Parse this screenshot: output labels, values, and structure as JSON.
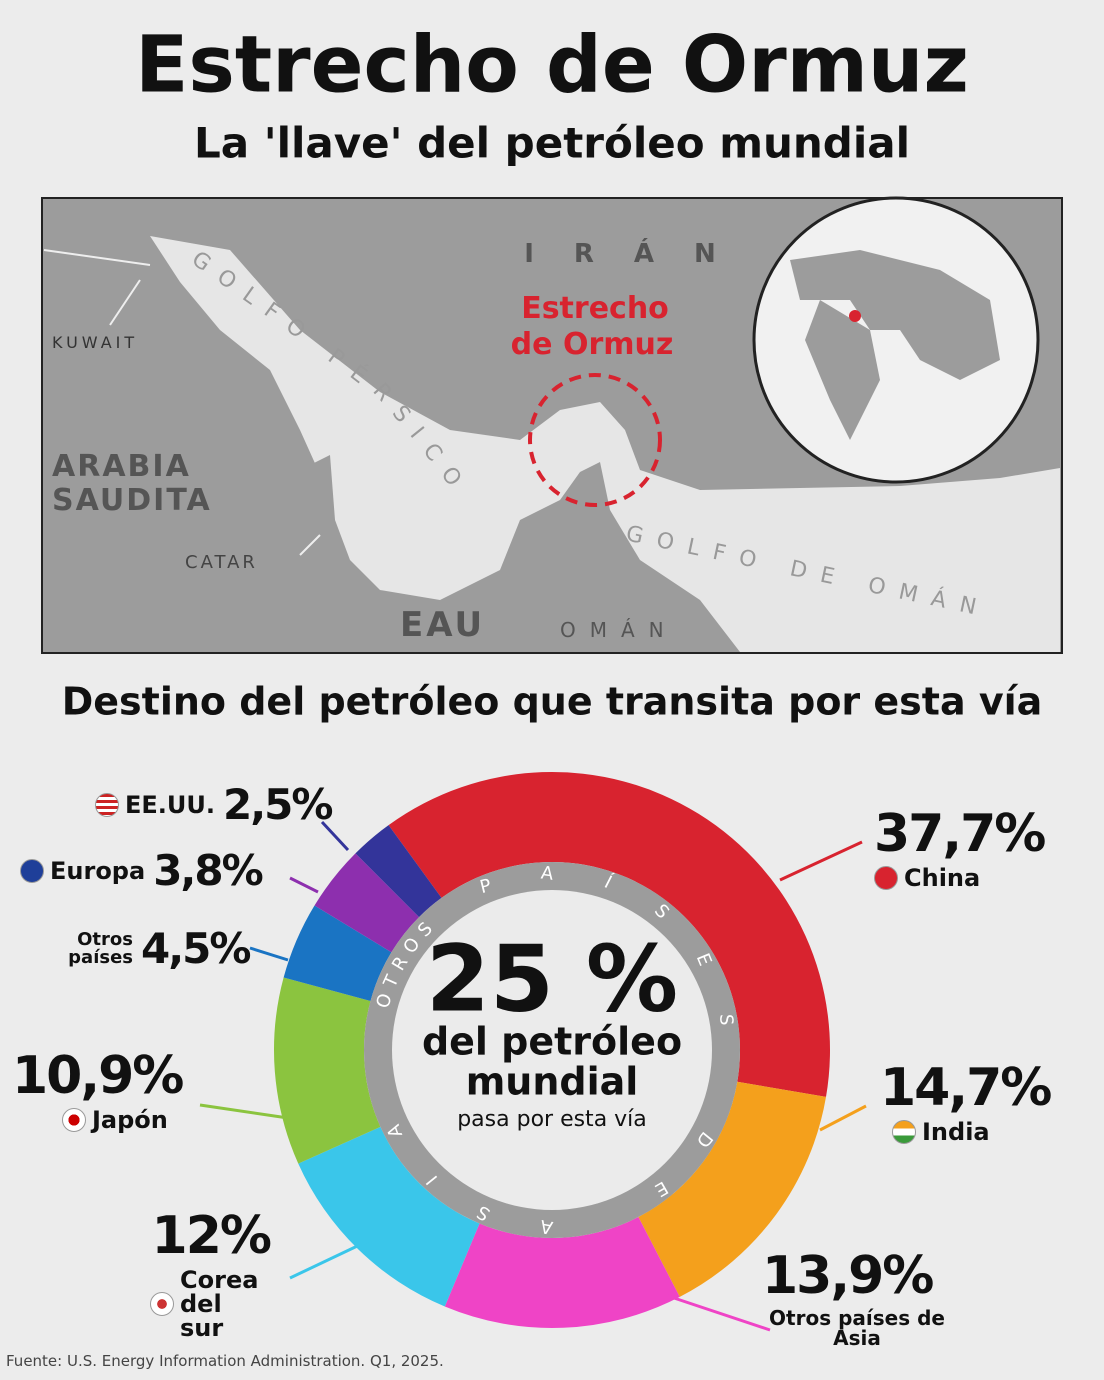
{
  "title": "Estrecho de Ormuz",
  "subtitle": "La 'llave' del petróleo mundial",
  "map": {
    "iran": "IRÁN",
    "kuwait": "KUWAIT",
    "arabia_saudita": [
      "ARABIA",
      "SAUDITA"
    ],
    "catar": "CATAR",
    "eau": "EAU",
    "oman": "OMÁN",
    "golfo_persico": "GOLFO PÉRSICO",
    "golfo_oman": "GOLFO DE OMÁN",
    "estrecho": [
      "Estrecho",
      "de Ormuz"
    ]
  },
  "chart_data": {
    "type": "donut",
    "title": "Destino del petróleo que transita por esta vía",
    "categories": [
      "China",
      "India",
      "Otros países de Asia",
      "Corea del sur",
      "Japón",
      "Otros países",
      "Europa",
      "EE.UU."
    ],
    "values": [
      37.7,
      14.7,
      13.9,
      12,
      10.9,
      4.5,
      3.8,
      2.5
    ],
    "value_labels": [
      "37,7%",
      "14,7%",
      "13,9%",
      "12%",
      "10,9%",
      "4,5%",
      "3,8%",
      "2,5%"
    ],
    "colors": [
      "#d8232f",
      "#f4a01c",
      "#ef44c6",
      "#3ac6ea",
      "#8bc43f",
      "#1a74c3",
      "#8d2fae",
      "#33349a"
    ],
    "ring_labels": [
      "OTROS",
      "PAÍSES DE ASIA"
    ],
    "center": {
      "value": "25 %",
      "lines": [
        "del petróleo",
        "mundial"
      ],
      "note": "pasa por esta vía"
    }
  },
  "source": "Fuente: U.S. Energy Information Administration. Q1, 2025."
}
